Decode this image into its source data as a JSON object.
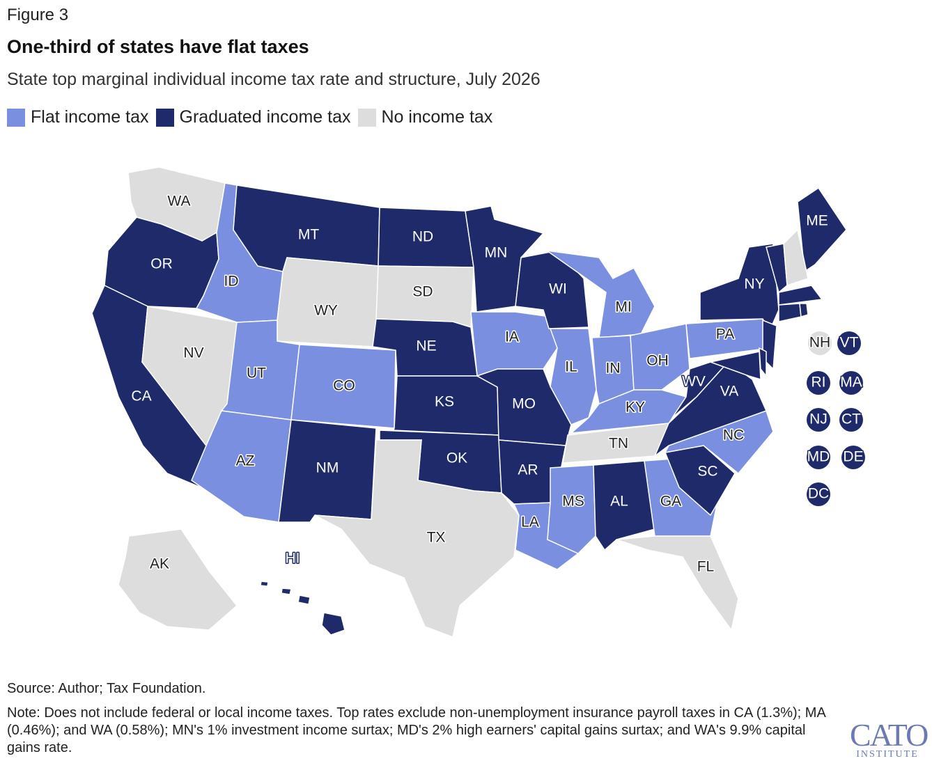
{
  "figure_label": "Figure 3",
  "title": "One-third of states have flat taxes",
  "subtitle": "State top marginal individual income tax rate and structure, July 2026",
  "colors": {
    "flat": "#7b8fe0",
    "graduated": "#1f2a6b",
    "none": "#dddddd"
  },
  "legend": [
    {
      "label": "Flat income tax",
      "category": "flat"
    },
    {
      "label": "Graduated income tax",
      "category": "graduated"
    },
    {
      "label": "No income tax",
      "category": "none"
    }
  ],
  "states": {
    "WA": "none",
    "OR": "graduated",
    "CA": "graduated",
    "NV": "none",
    "ID": "flat",
    "MT": "graduated",
    "WY": "none",
    "UT": "flat",
    "AZ": "flat",
    "CO": "flat",
    "NM": "graduated",
    "ND": "graduated",
    "SD": "none",
    "NE": "graduated",
    "KS": "graduated",
    "OK": "graduated",
    "TX": "none",
    "MN": "graduated",
    "IA": "flat",
    "MO": "graduated",
    "AR": "graduated",
    "LA": "flat",
    "WI": "graduated",
    "IL": "flat",
    "MI": "flat",
    "IN": "flat",
    "OH": "flat",
    "KY": "flat",
    "TN": "none",
    "MS": "flat",
    "AL": "graduated",
    "GA": "flat",
    "FL": "none",
    "SC": "graduated",
    "NC": "flat",
    "VA": "graduated",
    "WV": "graduated",
    "PA": "flat",
    "NY": "graduated",
    "ME": "graduated",
    "AK": "none",
    "HI": "graduated",
    "NH": "none",
    "VT": "graduated",
    "RI": "graduated",
    "MA": "graduated",
    "NJ": "graduated",
    "CT": "graduated",
    "MD": "graduated",
    "DE": "graduated",
    "DC": "graduated"
  },
  "source": "Source: Author; Tax Foundation.",
  "note": "Note: Does not include federal or local income taxes. Top rates exclude non-unemployment insurance payroll taxes in CA (1.3%); MA (0.46%); and WA (0.58%); MN's 1% investment income surtax; MD's 2% high earners' capital gains surtax; and WA's 9.9% capital gains rate.",
  "logo": {
    "text": "CATO",
    "subtext": "INSTITUTE"
  }
}
